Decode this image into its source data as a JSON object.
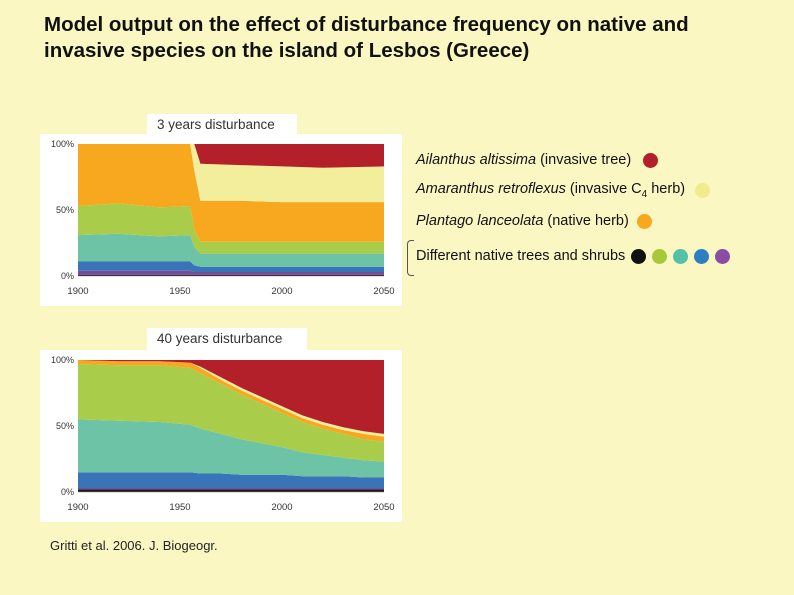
{
  "title": "Model output on the effect of disturbance frequency on native and invasive species on the island of Lesbos (Greece)",
  "citation": "Gritti et al. 2006. J. Biogeogr.",
  "legend": [
    {
      "species": "Ailanthus altissima",
      "note": " (invasive tree)",
      "colors": [
        "#b3202a"
      ]
    },
    {
      "species": "Amaranthus retroflexus",
      "note_pre": " (invasive C",
      "note_sub": "4",
      "note_post": " herb)",
      "colors": [
        "#f0eb8c"
      ]
    },
    {
      "species": "Plantago lanceolata",
      "note": " (native herb)",
      "colors": [
        "#f7a81e"
      ]
    },
    {
      "species": "",
      "note": "Different native trees and shrubs",
      "colors": [
        "#111111",
        "#a6c93a",
        "#55c0a8",
        "#2d7fc1",
        "#8b4ca6"
      ]
    }
  ],
  "chart_data": [
    {
      "type": "area",
      "stacked": true,
      "title": "3 years disturbance",
      "x": [
        1900,
        1920,
        1940,
        1955,
        1957,
        1960,
        1980,
        2000,
        2020,
        2050
      ],
      "xlim": [
        1900,
        2050
      ],
      "ylim": [
        0,
        100
      ],
      "xticks": [
        "1900",
        "1950",
        "2000",
        "2050"
      ],
      "yticks": [
        "0%",
        "50%",
        "100%"
      ],
      "series": [
        {
          "name": "black native",
          "color": "#1a1a1a",
          "values": [
            1,
            1,
            1,
            1,
            1,
            1,
            1,
            1,
            1,
            1
          ]
        },
        {
          "name": "purple native",
          "color": "#7a4a9e",
          "values": [
            3,
            3,
            3,
            3,
            2,
            2,
            2,
            2,
            2,
            2
          ]
        },
        {
          "name": "blue native",
          "color": "#3a74b8",
          "values": [
            7,
            7,
            7,
            7,
            5,
            4,
            4,
            4,
            4,
            4
          ]
        },
        {
          "name": "teal native",
          "color": "#6cc3a5",
          "values": [
            20,
            21,
            19,
            20,
            14,
            10,
            10,
            10,
            10,
            10
          ]
        },
        {
          "name": "green native",
          "color": "#a9cd4a",
          "values": [
            22,
            23,
            22,
            22,
            13,
            9,
            9,
            9,
            9,
            9
          ]
        },
        {
          "name": "Plantago lanceolata",
          "color": "#f7a81e",
          "values": [
            47,
            45,
            48,
            47,
            45,
            31,
            31,
            30,
            30,
            30
          ]
        },
        {
          "name": "Amaranthus retroflexus",
          "color": "#f2ee9b",
          "values": [
            0,
            0,
            0,
            0,
            20,
            28,
            27,
            27,
            26,
            27
          ]
        },
        {
          "name": "Ailanthus altissima",
          "color": "#b3202a",
          "values": [
            0,
            0,
            0,
            0,
            0,
            15,
            16,
            17,
            18,
            17
          ]
        }
      ]
    },
    {
      "type": "area",
      "stacked": true,
      "title": "40 years disturbance",
      "x": [
        1900,
        1920,
        1940,
        1955,
        1960,
        1970,
        1980,
        1990,
        2000,
        2010,
        2020,
        2030,
        2040,
        2050
      ],
      "xlim": [
        1900,
        2050
      ],
      "ylim": [
        0,
        100
      ],
      "xticks": [
        "1900",
        "1950",
        "2000",
        "2050"
      ],
      "yticks": [
        "0%",
        "50%",
        "100%"
      ],
      "series": [
        {
          "name": "black native",
          "color": "#1a1a1a",
          "values": [
            2,
            2,
            2,
            2,
            2,
            2,
            2,
            2,
            2,
            2,
            2,
            2,
            2,
            2
          ]
        },
        {
          "name": "purple native",
          "color": "#7a4a9e",
          "values": [
            1,
            1,
            1,
            1,
            1,
            1,
            1,
            1,
            1,
            1,
            1,
            1,
            1,
            1
          ]
        },
        {
          "name": "blue native",
          "color": "#3a74b8",
          "values": [
            12,
            12,
            12,
            12,
            11,
            11,
            10,
            10,
            10,
            9,
            9,
            9,
            8,
            8
          ]
        },
        {
          "name": "teal native",
          "color": "#6cc3a5",
          "values": [
            40,
            39,
            38,
            36,
            34,
            30,
            27,
            24,
            21,
            18,
            16,
            14,
            13,
            12
          ]
        },
        {
          "name": "green native",
          "color": "#a9cd4a",
          "values": [
            42,
            42,
            43,
            43,
            42,
            38,
            34,
            30,
            26,
            23,
            20,
            18,
            16,
            15
          ]
        },
        {
          "name": "Plantago lanceolata",
          "color": "#f7a81e",
          "values": [
            3,
            3,
            3,
            4,
            4,
            3,
            3,
            3,
            3,
            3,
            3,
            3,
            4,
            4
          ]
        },
        {
          "name": "Amaranthus retroflexus",
          "color": "#f2ee9b",
          "values": [
            0,
            0,
            0,
            0,
            1,
            2,
            2,
            2,
            2,
            2,
            2,
            2,
            2,
            2
          ]
        },
        {
          "name": "Ailanthus altissima",
          "color": "#b3202a",
          "values": [
            0,
            1,
            1,
            2,
            5,
            13,
            21,
            28,
            35,
            42,
            47,
            51,
            54,
            56
          ]
        }
      ]
    }
  ]
}
